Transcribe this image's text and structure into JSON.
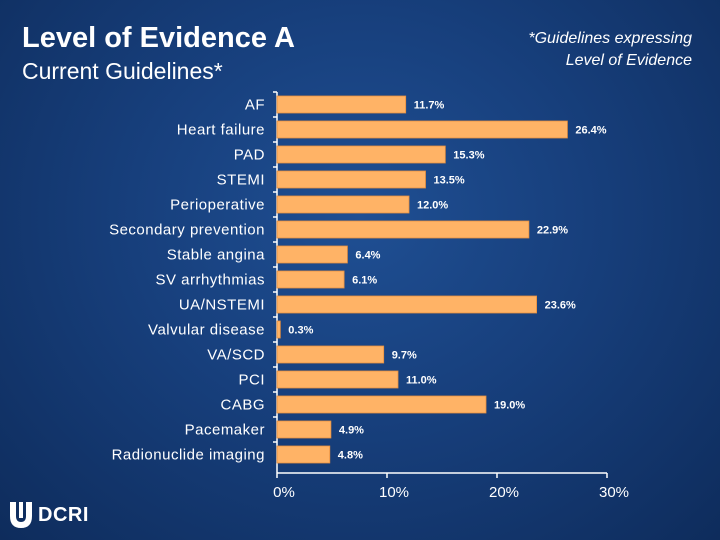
{
  "header": {
    "title": "Level of Evidence A",
    "subtitle": "Current Guidelines*",
    "note_line1": "*Guidelines expressing",
    "note_line2": "Level of Evidence"
  },
  "logo": {
    "text": "DCRI"
  },
  "colors": {
    "bar": "#ffb366",
    "bar_edge": "#e8903e",
    "background": "#1a4687",
    "label": "#ffffff"
  },
  "chart_data": {
    "type": "bar",
    "orientation": "horizontal",
    "title": "Level of Evidence A",
    "xlabel": "",
    "ylabel": "",
    "xlim": [
      0,
      30
    ],
    "xticks": [
      0,
      10,
      20,
      30
    ],
    "xtick_labels": [
      "0%",
      "10%",
      "20%",
      "30%"
    ],
    "categories": [
      "AF",
      "Heart failure",
      "PAD",
      "STEMI",
      "Perioperative",
      "Secondary prevention",
      "Stable angina",
      "SV arrhythmias",
      "UA/NSTEMI",
      "Valvular disease",
      "VA/SCD",
      "PCI",
      "CABG",
      "Pacemaker",
      "Radionuclide imaging"
    ],
    "values": [
      11.7,
      26.4,
      15.3,
      13.5,
      12.0,
      22.9,
      6.4,
      6.1,
      23.6,
      0.3,
      9.7,
      11.0,
      19.0,
      4.9,
      4.8
    ],
    "value_labels": [
      "11.7%",
      "26.4%",
      "15.3%",
      "13.5%",
      "12.0%",
      "22.9%",
      "6.4%",
      "6.1%",
      "23.6%",
      "0.3%",
      "9.7%",
      "11.0%",
      "19.0%",
      "4.9%",
      "4.8%"
    ]
  }
}
